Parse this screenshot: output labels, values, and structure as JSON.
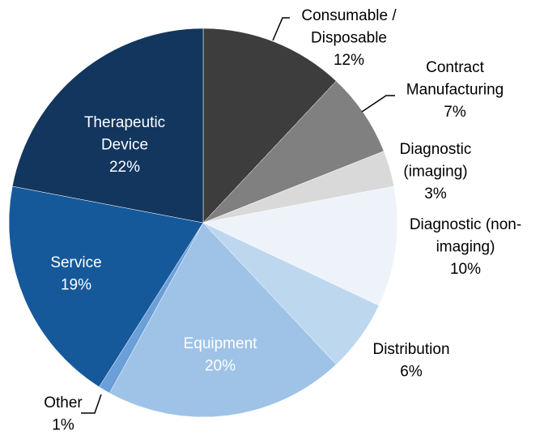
{
  "chart_data": {
    "type": "pie",
    "categories": [
      "Consumable / Disposable",
      "Contract Manufacturing",
      "Diagnostic (imaging)",
      "Diagnostic (non-imaging)",
      "Distribution",
      "Equipment",
      "Other",
      "Service",
      "Therapeutic Device"
    ],
    "values": [
      12,
      7,
      3,
      10,
      6,
      20,
      1,
      19,
      22
    ],
    "value_labels": [
      "12%",
      "7%",
      "3%",
      "10%",
      "6%",
      "20%",
      "1%",
      "19%",
      "22%"
    ],
    "colors": [
      "#3d3d3d",
      "#808080",
      "#d9d9d9",
      "#eef3f9",
      "#bdd7ee",
      "#9fc3e7",
      "#6a9fd8",
      "#15599b",
      "#13365e"
    ]
  }
}
